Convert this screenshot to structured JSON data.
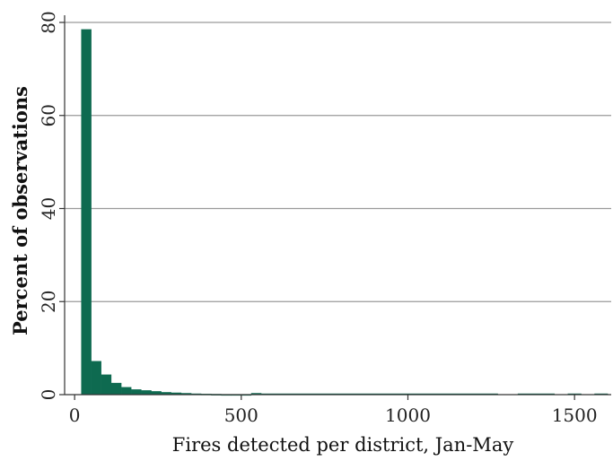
{
  "chart_data": {
    "type": "bar",
    "bin_width": 30,
    "bin_start": 20,
    "xlim": [
      -30,
      1610
    ],
    "ylim": [
      0,
      80
    ],
    "x_ticks": [
      "0",
      "500",
      "1000",
      "1500"
    ],
    "x_tick_values": [
      0,
      500,
      1000,
      1500
    ],
    "y_ticks": [
      "0",
      "20",
      "40",
      "60",
      "80"
    ],
    "y_tick_values": [
      0,
      20,
      40,
      60,
      80
    ],
    "grid": true,
    "xlabel": "Fires detected per district, Jan-May",
    "ylabel": "Percent of observations",
    "bar_color": "#0e6a50",
    "bins": [
      {
        "x0": 20,
        "x1": 50,
        "value": 78.5
      },
      {
        "x0": 50,
        "x1": 80,
        "value": 7.2
      },
      {
        "x0": 80,
        "x1": 110,
        "value": 4.3
      },
      {
        "x0": 110,
        "x1": 140,
        "value": 2.5
      },
      {
        "x0": 140,
        "x1": 170,
        "value": 1.6
      },
      {
        "x0": 170,
        "x1": 200,
        "value": 1.1
      },
      {
        "x0": 200,
        "x1": 230,
        "value": 0.9
      },
      {
        "x0": 230,
        "x1": 260,
        "value": 0.7
      },
      {
        "x0": 260,
        "x1": 290,
        "value": 0.5
      },
      {
        "x0": 290,
        "x1": 320,
        "value": 0.4
      },
      {
        "x0": 320,
        "x1": 350,
        "value": 0.3
      },
      {
        "x0": 350,
        "x1": 380,
        "value": 0.2
      },
      {
        "x0": 380,
        "x1": 410,
        "value": 0.15
      },
      {
        "x0": 410,
        "x1": 440,
        "value": 0.1
      },
      {
        "x0": 440,
        "x1": 470,
        "value": 0.05
      },
      {
        "x0": 470,
        "x1": 500,
        "value": 0.05
      },
      {
        "x0": 500,
        "x1": 530,
        "value": 0.05
      },
      {
        "x0": 530,
        "x1": 560,
        "value": 0.3
      },
      {
        "x0": 560,
        "x1": 1270,
        "value": 0.2
      },
      {
        "x0": 1330,
        "x1": 1440,
        "value": 0.2
      },
      {
        "x0": 1480,
        "x1": 1520,
        "value": 0.2
      },
      {
        "x0": 1560,
        "x1": 1600,
        "value": 0.2
      }
    ]
  }
}
